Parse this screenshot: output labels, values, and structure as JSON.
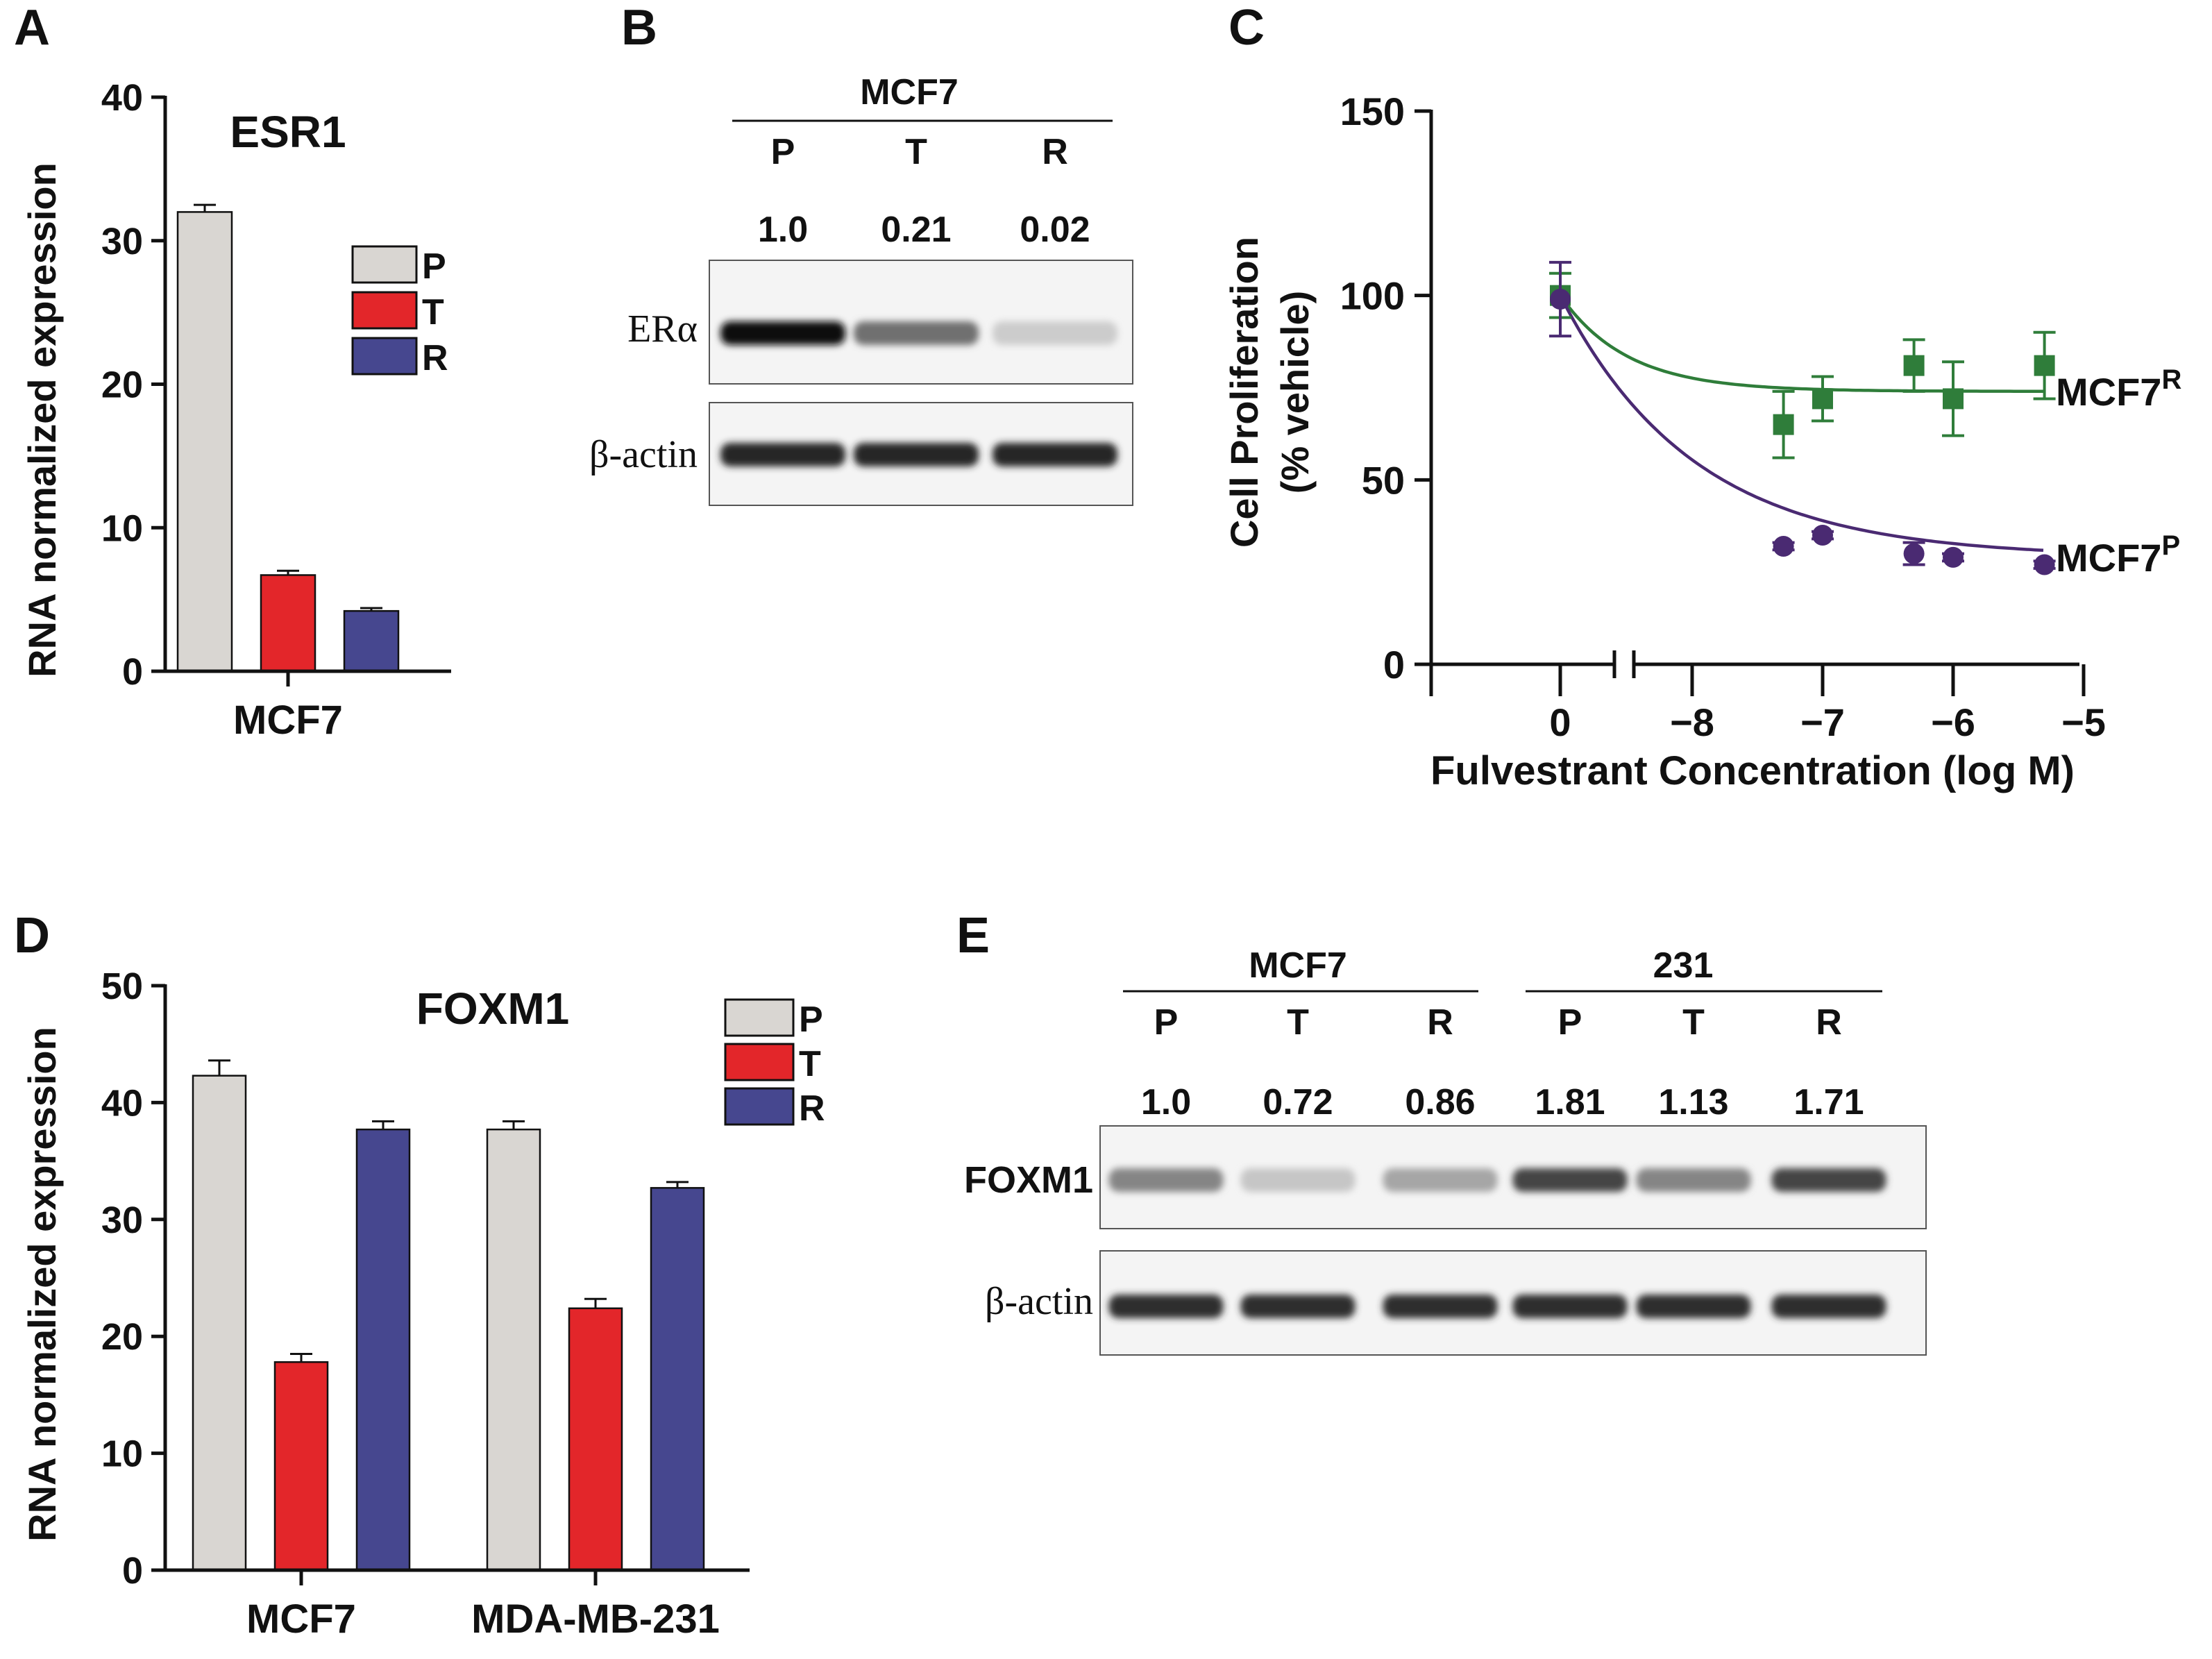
{
  "panel_labels": {
    "a": "A",
    "b": "B",
    "c": "C",
    "d": "D",
    "e": "E"
  },
  "colors": {
    "P": "#d9d6d2",
    "T": "#e3262a",
    "R": "#46478f",
    "resistant_line": "#2f7d3a",
    "parental_line": "#4a2a72"
  },
  "chart_data": [
    {
      "panel": "A",
      "type": "bar",
      "title": "ESR1",
      "xlabel": "",
      "ylabel": "RNA normalized expression",
      "ylim": [
        0,
        40
      ],
      "yticks": [
        "0",
        "10",
        "20",
        "30",
        "40"
      ],
      "categories": [
        "MCF7"
      ],
      "series": [
        {
          "name": "P",
          "values": [
            32.0
          ],
          "errors": [
            0.5
          ]
        },
        {
          "name": "T",
          "values": [
            6.7
          ],
          "errors": [
            0.3
          ]
        },
        {
          "name": "R",
          "values": [
            4.2
          ],
          "errors": [
            0.2
          ]
        }
      ],
      "legend": [
        "P",
        "T",
        "R"
      ],
      "legend_position": "top-right"
    },
    {
      "panel": "C",
      "type": "scatter",
      "title": "",
      "xlabel": "Fulvestrant Concentration (log M)",
      "ylabel_line1": "Cell Proliferation",
      "ylabel_line2": "(% vehicle)",
      "ylim": [
        0,
        150
      ],
      "yticks": [
        "0",
        "50",
        "100",
        "150"
      ],
      "xticks": [
        "0",
        "−8",
        "−7",
        "−6",
        "−5"
      ],
      "xlim_log": [
        -8.5,
        -5
      ],
      "axis_break": true,
      "series": [
        {
          "name": "MCF7R",
          "label_base": "MCF7",
          "label_sup": "R",
          "marker": "square",
          "vehicle": {
            "y": 100,
            "err": 6
          },
          "x": [
            -7.3,
            -7.0,
            -6.3,
            -6.0,
            -5.3
          ],
          "y": [
            65,
            72,
            81,
            72,
            81
          ],
          "err": [
            9,
            6,
            7,
            10,
            9
          ],
          "fit_plateau": 74
        },
        {
          "name": "MCF7P",
          "label_base": "MCF7",
          "label_sup": "P",
          "marker": "circle",
          "vehicle": {
            "y": 99,
            "err": 10
          },
          "x": [
            -7.3,
            -7.0,
            -6.3,
            -6.0,
            -5.3
          ],
          "y": [
            32,
            35,
            30,
            29,
            27
          ],
          "err": [
            1,
            1,
            3,
            1,
            1
          ],
          "fit_plateau": 29
        }
      ]
    },
    {
      "panel": "D",
      "type": "bar",
      "title": "FOXM1",
      "xlabel": "",
      "ylabel": "RNA normalized expression",
      "ylim": [
        0,
        50
      ],
      "yticks": [
        "0",
        "10",
        "20",
        "30",
        "40",
        "50"
      ],
      "categories": [
        "MCF7",
        "MDA-MB-231"
      ],
      "series": [
        {
          "name": "P",
          "values": [
            42.3,
            37.7
          ],
          "errors": [
            1.3,
            0.7
          ]
        },
        {
          "name": "T",
          "values": [
            17.8,
            22.4
          ],
          "errors": [
            0.7,
            0.8
          ]
        },
        {
          "name": "R",
          "values": [
            37.7,
            32.7
          ],
          "errors": [
            0.7,
            0.5
          ]
        }
      ],
      "legend": [
        "P",
        "T",
        "R"
      ],
      "legend_position": "top-right"
    }
  ],
  "blot_b": {
    "group_label": "MCF7",
    "lanes": [
      "P",
      "T",
      "R"
    ],
    "quantification": [
      "1.0",
      "0.21",
      "0.02"
    ],
    "rows": [
      {
        "label": "ERα",
        "intensity": [
          1.0,
          0.55,
          0.12
        ]
      },
      {
        "label": "β-actin",
        "intensity": [
          0.9,
          0.9,
          0.9
        ]
      }
    ]
  },
  "blot_e": {
    "groups": [
      {
        "label": "MCF7",
        "lanes": [
          "P",
          "T",
          "R"
        ]
      },
      {
        "label": "231",
        "lanes": [
          "P",
          "T",
          "R"
        ]
      }
    ],
    "quantification": [
      "1.0",
      "0.72",
      "0.86",
      "1.81",
      "1.13",
      "1.71"
    ],
    "rows": [
      {
        "label": "FOXM1",
        "intensity": [
          0.45,
          0.15,
          0.3,
          0.75,
          0.45,
          0.75
        ]
      },
      {
        "label": "β-actin",
        "intensity": [
          0.85,
          0.85,
          0.85,
          0.85,
          0.85,
          0.85
        ]
      }
    ]
  }
}
